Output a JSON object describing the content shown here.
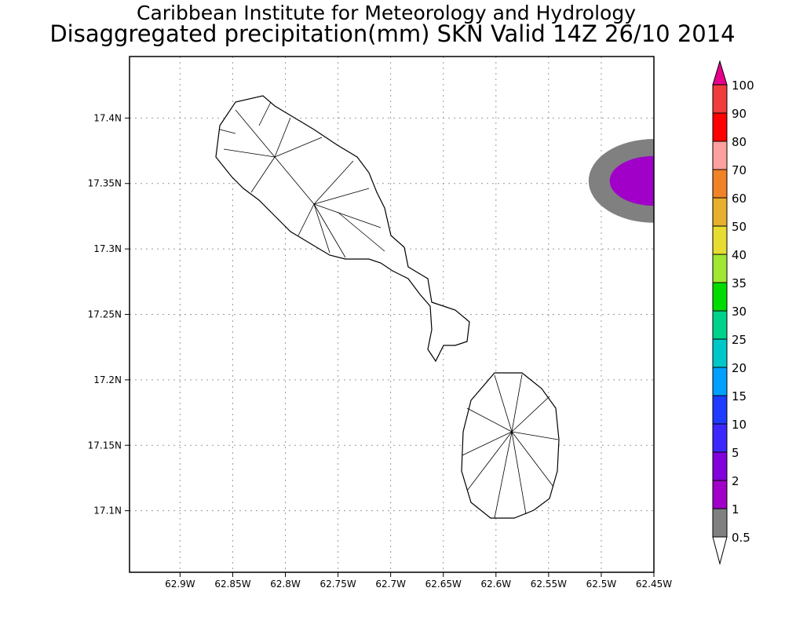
{
  "title_line1": "Caribbean Institute for Meteorology and Hydrology",
  "title_line2": "Disaggregated precipitation(mm) SKN Valid 14Z 26/10 2014",
  "chart_data": {
    "type": "heatmap",
    "map_extent": {
      "lon_range": [
        -62.948,
        -62.45
      ],
      "lat_range": [
        17.053,
        17.447
      ]
    },
    "x_ticks": [
      {
        "value": -62.9,
        "label": "62.9W"
      },
      {
        "value": -62.85,
        "label": "62.85W"
      },
      {
        "value": -62.8,
        "label": "62.8W"
      },
      {
        "value": -62.75,
        "label": "62.75W"
      },
      {
        "value": -62.7,
        "label": "62.7W"
      },
      {
        "value": -62.65,
        "label": "62.65W"
      },
      {
        "value": -62.6,
        "label": "62.6W"
      },
      {
        "value": -62.55,
        "label": "62.55W"
      },
      {
        "value": -62.5,
        "label": "62.5W"
      },
      {
        "value": -62.45,
        "label": "62.45W"
      }
    ],
    "y_ticks": [
      {
        "value": 17.4,
        "label": "17.4N"
      },
      {
        "value": 17.35,
        "label": "17.35N"
      },
      {
        "value": 17.3,
        "label": "17.3N"
      },
      {
        "value": 17.25,
        "label": "17.25N"
      },
      {
        "value": 17.2,
        "label": "17.2N"
      },
      {
        "value": 17.15,
        "label": "17.15N"
      },
      {
        "value": 17.1,
        "label": "17.1N"
      }
    ],
    "grid": true,
    "precip_features": [
      {
        "description_range_mm": [
          0.5,
          1
        ],
        "color": "#808080",
        "center": [
          -62.45,
          17.352
        ],
        "radius_lon": 0.062,
        "radius_lat": 0.032
      },
      {
        "description_range_mm": [
          1,
          2
        ],
        "color": "#a000c8",
        "center": [
          -62.45,
          17.352
        ],
        "radius_lon": 0.042,
        "radius_lat": 0.019
      }
    ],
    "colorbar": {
      "labels": [
        "100",
        "90",
        "80",
        "70",
        "60",
        "50",
        "40",
        "35",
        "30",
        "25",
        "20",
        "15",
        "10",
        "5",
        "2",
        "1",
        "0.5"
      ],
      "colors": [
        "#f03c3c",
        "#ff0000",
        "#ffa0a0",
        "#f08228",
        "#e6af2d",
        "#e6dc32",
        "#a0e632",
        "#00dc00",
        "#00d28c",
        "#00c8c8",
        "#00a0ff",
        "#1e3cff",
        "#3c28ff",
        "#8200dc",
        "#a000c8",
        "#808080"
      ],
      "over_color": "#e6008c",
      "under_color": "#ffffff"
    }
  }
}
